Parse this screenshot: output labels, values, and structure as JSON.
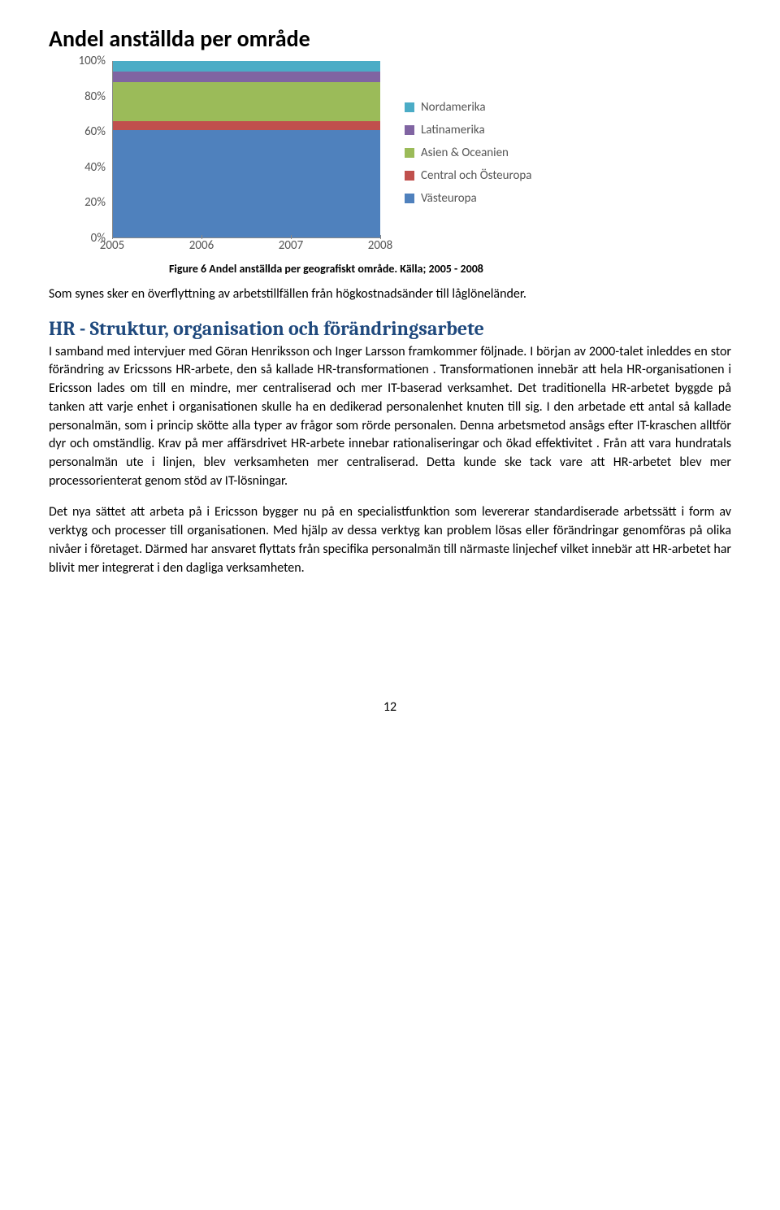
{
  "chart": {
    "title": "Andel anställda per område",
    "type": "area",
    "categories": [
      "2005",
      "2006",
      "2007",
      "2008"
    ],
    "y_ticks": [
      {
        "v": 0,
        "label": "0%"
      },
      {
        "v": 20,
        "label": "20%"
      },
      {
        "v": 40,
        "label": "40%"
      },
      {
        "v": 60,
        "label": "60%"
      },
      {
        "v": 80,
        "label": "80%"
      },
      {
        "v": 100,
        "label": "100%"
      }
    ],
    "ylim": [
      0,
      100
    ],
    "series_colors": {
      "Nordamerika": "#4bacc6",
      "Latinamerika": "#8064a2",
      "Asien & Oceanien": "#9bbb59",
      "Central och Östeuropa": "#c0504d",
      "Västeuropa": "#4f81bd"
    },
    "legend": [
      {
        "label": "Nordamerika",
        "color": "#4bacc6"
      },
      {
        "label": "Latinamerika",
        "color": "#8064a2"
      },
      {
        "label": "Asien & Oceanien",
        "color": "#9bbb59"
      },
      {
        "label": "Central och Östeuropa",
        "color": "#c0504d"
      },
      {
        "label": "Västeuropa",
        "color": "#4f81bd"
      }
    ],
    "stacked_cum_top": {
      "Västeuropa": 61,
      "Central och Östeuropa": 66,
      "Asien & Oceanien": 88,
      "Latinamerika": 94,
      "Nordamerika": 100
    },
    "background_color": "#ffffff",
    "grid_color": "#7da2c9",
    "label_fontsize": 15
  },
  "figure_caption": "Figure 6 Andel anställda per geografiskt område. Källa; 2005 - 2008",
  "intro_para": "Som synes sker en överflyttning av arbetstillfällen från högkostnadsänder till låglöneländer.",
  "section_heading": "HR - Struktur, organisation och förändringsarbete",
  "para1": "I samband med intervjuer med Göran Henriksson och Inger Larsson framkommer följnade. I början av 2000-talet inleddes en stor förändring av Ericssons HR-arbete, den så kallade HR-transformationen . Transformationen innebär att hela HR-organisationen i Ericsson lades om till en mindre, mer centraliserad och mer IT-baserad verksamhet. Det traditionella HR-arbetet byggde på tanken att varje enhet i organisationen skulle ha en dedikerad personalenhet knuten till sig. I den arbetade ett antal så kallade personalmän, som i princip skötte alla typer av frågor som rörde personalen. Denna arbetsmetod ansågs efter IT-kraschen alltför dyr och omständlig. Krav på mer affärsdrivet  HR-arbete  innebar rationaliseringar och ökad effektivitet . Från att vara hundratals personalmän ute i linjen,  blev verksamheten mer centraliserad. Detta kunde ske tack vare att HR-arbetet blev mer  processorienterat genom stöd av IT-lösningar.",
  "para2": "Det nya sättet att arbeta på i Ericsson bygger nu på en specialistfunktion som levererar standardiserade arbetssätt i form av verktyg och processer till organisationen. Med hjälp av dessa verktyg kan problem lösas eller förändringar genomföras på olika nivåer i företaget. Därmed har ansvaret flyttats från specifika personalmän till närmaste linjechef vilket innebär att HR-arbetet har blivit mer integrerat i den dagliga verksamheten.",
  "page_number": "12"
}
